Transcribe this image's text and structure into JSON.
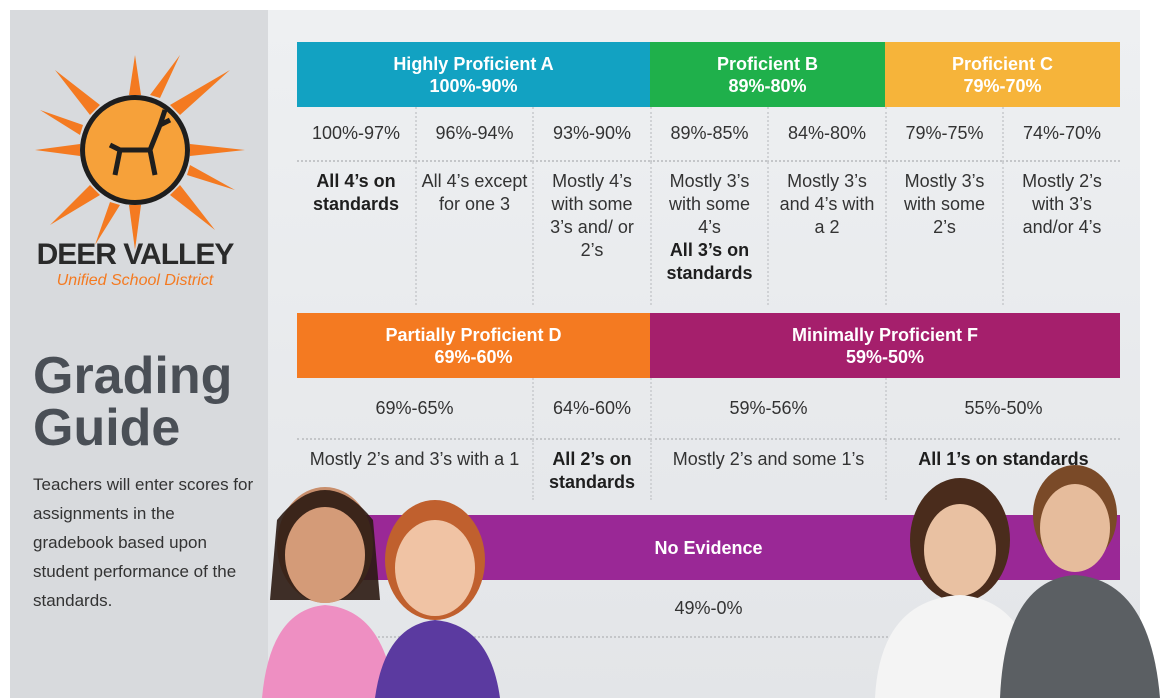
{
  "logo": {
    "name": "DEER VALLEY",
    "subtitle": "Unified School District"
  },
  "sidebar": {
    "title": "Grading Guide",
    "description": "Teachers will enter scores for assignments in the gradebook based upon student performance of the standards."
  },
  "tables": [
    [
      {
        "label": "Highly Proficient A",
        "range": "100%-90%",
        "color": "#12a2c2",
        "columns": [
          {
            "range": "100%-97%",
            "bold": "All 4’s on standards"
          },
          {
            "range": "96%-94%",
            "text": "All 4’s except for one 3"
          },
          {
            "range": "93%-90%",
            "text": "Mostly 4’s with some 3’s and/ or 2’s"
          }
        ]
      },
      {
        "label": "Proficient B",
        "range": "89%-80%",
        "color": "#1fb04b",
        "columns": [
          {
            "range": "89%-85%",
            "text": "Mostly 3’s with some 4’s",
            "bold": "All 3’s on standards"
          },
          {
            "range": "84%-80%",
            "text": "Mostly 3’s and 4’s with a 2"
          }
        ]
      },
      {
        "label": "Proficient C",
        "range": "79%-70%",
        "color": "#f6b43a",
        "columns": [
          {
            "range": "79%-75%",
            "text": "Mostly 3’s with some 2’s"
          },
          {
            "range": "74%-70%",
            "text": "Mostly 2’s with 3’s and/or 4’s"
          }
        ]
      }
    ],
    [
      {
        "label": "Partially Proficient D",
        "range": "69%-60%",
        "color": "#f47a21",
        "columns": [
          {
            "range": "69%-65%",
            "text": "Mostly 2’s and 3’s with a 1"
          },
          {
            "range": "64%-60%",
            "bold": "All 2’s on standards"
          }
        ]
      },
      {
        "label": "Minimally Proficient F",
        "range": "59%-50%",
        "color": "#a51f6c",
        "columns": [
          {
            "range": "59%-56%",
            "text": "Mostly 2’s and some 1’s"
          },
          {
            "range": "55%-50%",
            "bold": "All 1’s on standards"
          }
        ]
      }
    ]
  ],
  "no_evidence": {
    "label": "No Evidence",
    "range": "49%-0%",
    "color": "#9a2896"
  }
}
